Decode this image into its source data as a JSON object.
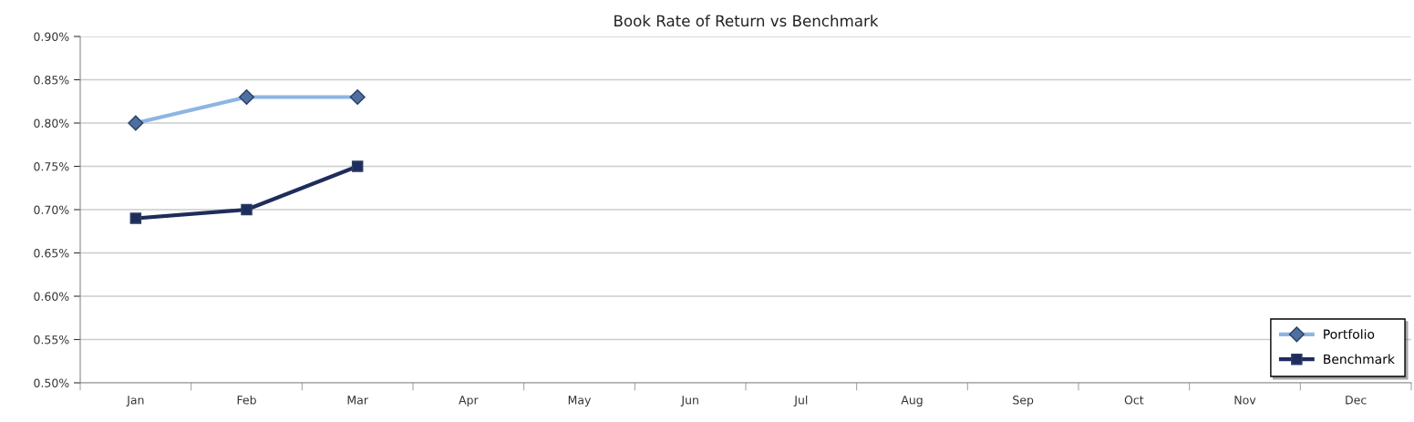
{
  "chart_data": {
    "type": "line",
    "title": "Book Rate of Return vs Benchmark",
    "categories": [
      "Jan",
      "Feb",
      "Mar",
      "Apr",
      "May",
      "Jun",
      "Jul",
      "Aug",
      "Sep",
      "Oct",
      "Nov",
      "Dec"
    ],
    "series": [
      {
        "name": "Portfolio",
        "color": "#8eb4e3",
        "marker": "diamond",
        "values": [
          0.8,
          0.83,
          0.83,
          null,
          null,
          null,
          null,
          null,
          null,
          null,
          null,
          null
        ]
      },
      {
        "name": "Benchmark",
        "color": "#1f2d5c",
        "marker": "square",
        "values": [
          0.69,
          0.7,
          0.75,
          null,
          null,
          null,
          null,
          null,
          null,
          null,
          null,
          null
        ]
      }
    ],
    "ylim": [
      0.5,
      0.9
    ],
    "yticks": [
      {
        "value": 0.5,
        "label": "0.50%"
      },
      {
        "value": 0.55,
        "label": "0.55%"
      },
      {
        "value": 0.6,
        "label": "0.60%"
      },
      {
        "value": 0.65,
        "label": "0.65%"
      },
      {
        "value": 0.7,
        "label": "0.70%"
      },
      {
        "value": 0.75,
        "label": "0.75%"
      },
      {
        "value": 0.8,
        "label": "0.80%"
      },
      {
        "value": 0.85,
        "label": "0.85%"
      },
      {
        "value": 0.9,
        "label": "0.90%"
      }
    ],
    "grid": "y",
    "legend": "bottom right",
    "line_style": "solid"
  }
}
